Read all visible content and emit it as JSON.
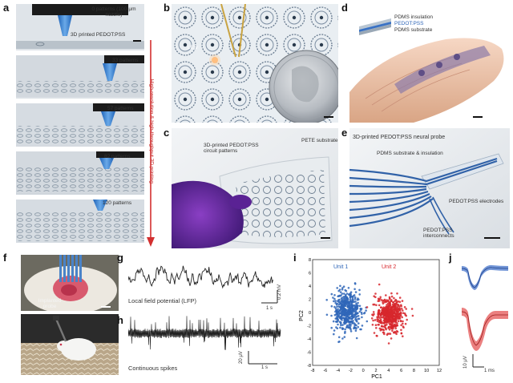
{
  "panels": {
    "a": {
      "label": "a",
      "steps": [
        "0 patterns (100-μm nozzle)",
        "33 patterns",
        "57 patterns",
        "82 patterns",
        "120 patterns"
      ],
      "pointer": "3D printed PEDOT:PSS",
      "arrow_caption": "High-resolution & high-throughput 3D printing"
    },
    "b": {
      "label": "b",
      "led": "LED"
    },
    "c": {
      "label": "c",
      "circuit": "3D-printed PEDOT:PSS circuit patterns",
      "substrate": "PETE substrate"
    },
    "d": {
      "label": "d",
      "insulation": "PDMS insulation",
      "pedot": "PEDOT:PSS",
      "substrate": "PDMS substrate"
    },
    "e": {
      "label": "e",
      "title": "3D-printed PEDOT:PSS neural probe",
      "pdms": "PDMS substrate & insulation",
      "electrodes": "PEDOT:PSS electrodes",
      "interconnects": "PEDOT:PSS interconnects"
    },
    "f": {
      "label": "f",
      "probe": "Implanted probe"
    },
    "g": {
      "label": "g",
      "caption": "Local field potential (LFP)",
      "scale_v": "0.2 mV",
      "scale_t": "1 s"
    },
    "h": {
      "label": "h",
      "caption": "Continuous spikes",
      "scale_v": "20 μV",
      "scale_t": "1 s"
    },
    "i": {
      "label": "i"
    },
    "j": {
      "label": "j",
      "scale_v": "10 μV",
      "scale_t": "1 ms"
    }
  },
  "chart_data": [
    {
      "type": "scatter",
      "panel": "i",
      "xlabel": "PC1",
      "ylabel": "PC2",
      "xlim": [
        -8,
        12
      ],
      "ylim": [
        -8,
        8
      ],
      "xticks": [
        -8,
        -6,
        -4,
        -2,
        0,
        2,
        4,
        6,
        8,
        10,
        12
      ],
      "yticks": [
        -8,
        -6,
        -4,
        -2,
        0,
        2,
        4,
        6,
        8
      ],
      "series": [
        {
          "name": "Unit 1",
          "color": "#2f66b8",
          "center": [
            -2.6,
            0.2
          ],
          "spread": [
            1.9,
            2.3
          ]
        },
        {
          "name": "Unit 2",
          "color": "#d7272d",
          "center": [
            4.2,
            -0.4
          ],
          "spread": [
            1.8,
            2.2
          ]
        }
      ]
    }
  ],
  "colors": {
    "unit1": "#2f66b8",
    "unit2": "#d7272d",
    "arrow": "#d32f2f"
  }
}
